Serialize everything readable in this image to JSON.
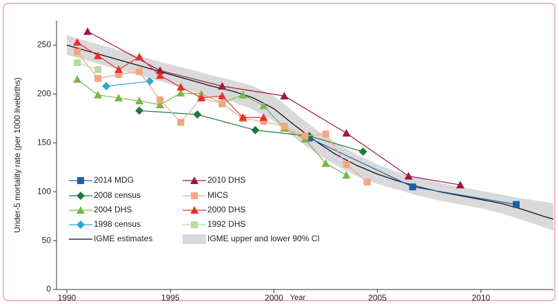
{
  "chart_data": {
    "type": "line",
    "xlabel": "Year",
    "ylabel": "Under-5 mortality rate (per 1000 livebirths)",
    "xlim": [
      1989.5,
      2013.5
    ],
    "ylim": [
      0,
      275
    ],
    "xticks": [
      1990,
      1995,
      2000,
      2005,
      2010
    ],
    "yticks": [
      0,
      50,
      100,
      150,
      200,
      250
    ],
    "series": [
      {
        "name": "2014 MDG",
        "color": "#1f5fa8",
        "marker": "square",
        "x": [
          2001.7,
          2006.7,
          2011.7
        ],
        "values": [
          155,
          105,
          87
        ]
      },
      {
        "name": "2008 census",
        "color": "#1e7a3c",
        "marker": "diamond",
        "x": [
          1993.5,
          1996.3,
          1999.1,
          2001.7,
          2004.3
        ],
        "values": [
          183,
          179,
          163,
          157,
          141
        ]
      },
      {
        "name": "2004 DHS",
        "color": "#7ab648",
        "marker": "triangle",
        "x": [
          1990.5,
          1991.5,
          1992.5,
          1993.5,
          1994.5,
          1995.5,
          1996.5,
          1997.5,
          1998.5,
          1999.5,
          2000.5,
          2001.5,
          2002.5,
          2003.5
        ],
        "values": [
          215,
          199,
          196,
          193,
          189,
          201,
          200,
          191,
          199,
          188,
          165,
          154,
          129,
          117
        ]
      },
      {
        "name": "1998 census",
        "color": "#2aa8d8",
        "marker": "diamond",
        "x": [
          1991.9,
          1994
        ],
        "values": [
          208,
          213
        ]
      },
      {
        "name": "2010 DHS",
        "color": "#a0153e",
        "marker": "triangle",
        "x": [
          1991,
          1994.5,
          1997.5,
          2000.5,
          2003.5,
          2006.5,
          2009
        ],
        "values": [
          264,
          224,
          208,
          198,
          160,
          116,
          107
        ]
      },
      {
        "name": "MICS",
        "color": "#f4a582",
        "marker": "square",
        "x": [
          1990.5,
          1991.5,
          1992.5,
          1993.5,
          1994.5,
          1995.5,
          1996.5,
          1997.5,
          1998.5,
          1999.5,
          2000.5,
          2001.5,
          2002.5,
          2003.5,
          2004.5
        ],
        "values": [
          243,
          216,
          220,
          223,
          194,
          171,
          196,
          190,
          175,
          172,
          167,
          157,
          159,
          128,
          110
        ]
      },
      {
        "name": "2000 DHS",
        "color": "#e8302a",
        "marker": "triangle",
        "x": [
          1990.5,
          1991.5,
          1992.5,
          1993.5,
          1994.5,
          1995.5,
          1996.5,
          1997.5,
          1998.5,
          1999.5
        ],
        "values": [
          253,
          239,
          225,
          238,
          219,
          207,
          196,
          198,
          176,
          176
        ]
      },
      {
        "name": "1992 DHS",
        "color": "#b8dca0",
        "marker": "square",
        "x": [
          1990.5,
          1991.5
        ],
        "values": [
          232,
          225
        ]
      }
    ],
    "estimate": {
      "name": "IGME estimates",
      "color": "#111111",
      "x": [
        1990,
        1991,
        1992,
        1993,
        1994,
        1995,
        1996,
        1997,
        1998,
        1999,
        2000,
        2001,
        2002,
        2003,
        2004,
        2005,
        2006,
        2007,
        2008,
        2009,
        2010,
        2011,
        2012,
        2013,
        2013.5
      ],
      "values": [
        250,
        244,
        238,
        232,
        226,
        220,
        214,
        208,
        203,
        196,
        185,
        168,
        152,
        138,
        127,
        118,
        111,
        105,
        100,
        96,
        92,
        88,
        82,
        75,
        72
      ]
    },
    "band": {
      "name": "IGME upper and lower 90% CI",
      "color": "#d9d9dc",
      "x": [
        1990,
        1991,
        1992,
        1993,
        1994,
        1995,
        1996,
        1997,
        1998,
        1999,
        2000,
        2001,
        2002,
        2003,
        2004,
        2005,
        2006,
        2007,
        2008,
        2009,
        2010,
        2011,
        2012,
        2013,
        2013.5
      ],
      "upper": [
        260,
        254,
        248,
        242,
        236,
        230,
        225,
        219,
        214,
        208,
        198,
        181,
        164,
        150,
        138,
        128,
        120,
        114,
        109,
        105,
        101,
        97,
        93,
        90,
        88
      ],
      "lower": [
        240,
        234,
        228,
        222,
        216,
        210,
        203,
        197,
        192,
        184,
        172,
        155,
        140,
        127,
        116,
        108,
        102,
        96,
        91,
        87,
        83,
        78,
        71,
        64,
        60
      ]
    }
  }
}
